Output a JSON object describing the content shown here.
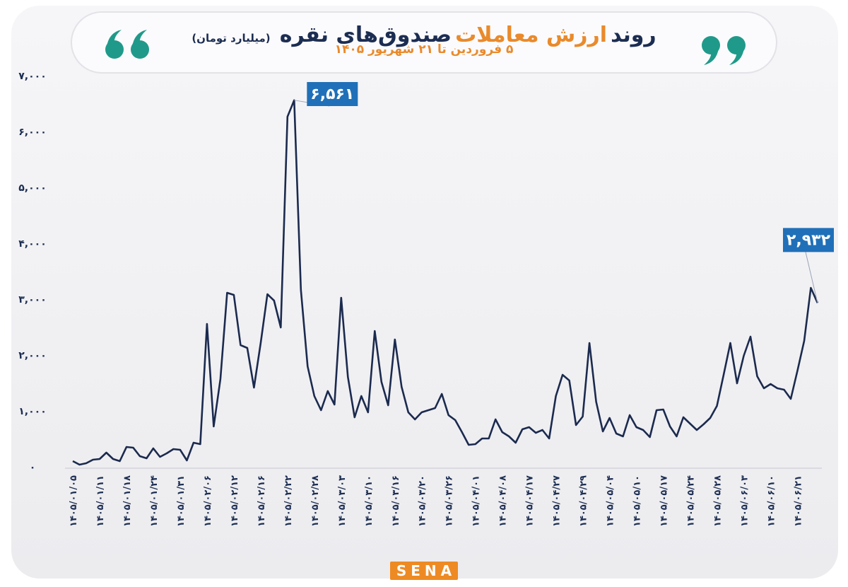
{
  "chart_data": {
    "type": "line",
    "title": [
      "روند",
      "ارزش معاملات",
      "صندوق‌های نقره"
    ],
    "unit_label": "(میلیارد تومان)",
    "subtitle": "۵ فروردین تا ۲۱ شهریور ۱۴۰۵",
    "logo": "SENA",
    "color": "#1b2a4e",
    "label_color": "#1f70b8",
    "grid": false,
    "ylim": [
      0,
      7000
    ],
    "yticks": [
      {
        "value": 0,
        "label": "۰"
      },
      {
        "value": 1000,
        "label": "۱,۰۰۰"
      },
      {
        "value": 2000,
        "label": "۲,۰۰۰"
      },
      {
        "value": 3000,
        "label": "۳,۰۰۰"
      },
      {
        "value": 4000,
        "label": "۴,۰۰۰"
      },
      {
        "value": 5000,
        "label": "۵,۰۰۰"
      },
      {
        "value": 6000,
        "label": "۶,۰۰۰"
      },
      {
        "value": 7000,
        "label": "۷,۰۰۰"
      }
    ],
    "categories": [
      "۱۴۰۵/۰۱/۰۵",
      null,
      null,
      null,
      "۱۴۰۵/۰۱/۱۱",
      null,
      null,
      null,
      "۱۴۰۵/۰۱/۱۸",
      null,
      null,
      null,
      "۱۴۰۵/۰۱/۲۴",
      null,
      null,
      null,
      "۱۴۰۵/۰۱/۳۱",
      null,
      null,
      null,
      "۱۴۰۵/۰۲/۰۶",
      null,
      null,
      null,
      "۱۴۰۵/۰۲/۱۲",
      null,
      null,
      null,
      "۱۴۰۵/۰۲/۱۶",
      null,
      null,
      null,
      "۱۴۰۵/۰۲/۲۲",
      null,
      null,
      null,
      "۱۴۰۵/۰۲/۲۸",
      null,
      null,
      null,
      "۱۴۰۵/۰۳/۰۳",
      null,
      null,
      null,
      "۱۴۰۵/۰۳/۱۰",
      null,
      null,
      null,
      "۱۴۰۵/۰۳/۱۶",
      null,
      null,
      null,
      "۱۴۰۵/۰۳/۲۰",
      null,
      null,
      null,
      "۱۴۰۵/۰۳/۲۶",
      null,
      null,
      null,
      "۱۴۰۵/۰۴/۰۱",
      null,
      null,
      null,
      "۱۴۰۵/۰۴/۰۸",
      null,
      null,
      null,
      "۱۴۰۵/۰۴/۱۷",
      null,
      null,
      null,
      "۱۴۰۵/۰۴/۲۷",
      null,
      null,
      null,
      "۱۴۰۵/۰۴/۲۹",
      null,
      null,
      null,
      "۱۴۰۵/۰۵/۰۴",
      null,
      null,
      null,
      "۱۴۰۵/۰۵/۱۰",
      null,
      null,
      null,
      "۱۴۰۵/۰۵/۱۷",
      null,
      null,
      null,
      "۱۴۰۵/۰۵/۲۴",
      null,
      null,
      null,
      "۱۴۰۵/۰۵/۲۸",
      null,
      null,
      null,
      "۱۴۰۵/۰۶/۰۳",
      null,
      null,
      null,
      "۱۴۰۵/۰۶/۱۰",
      null,
      null,
      null,
      "۱۴۰۵/۰۶/۲۱",
      null,
      null,
      null
    ],
    "values": [
      101,
      38,
      63,
      127,
      139,
      253,
      139,
      101,
      354,
      342,
      190,
      152,
      329,
      177,
      241,
      316,
      304,
      114,
      430,
      405,
      2557,
      722,
      1570,
      3114,
      3076,
      2177,
      2127,
      1418,
      2215,
      3089,
      2975,
      2494,
      6266,
      6561,
      3165,
      1797,
      1266,
      1013,
      1354,
      1114,
      3025,
      1608,
      886,
      1266,
      975,
      2430,
      1519,
      1101,
      2278,
      1430,
      975,
      848,
      975,
      1013,
      1051,
      1304,
      924,
      835,
      620,
      392,
      405,
      506,
      506,
      848,
      620,
      544,
      430,
      671,
      709,
      608,
      658,
      506,
      1266,
      1646,
      1544,
      747,
      899,
      2215,
      1165,
      633,
      873,
      595,
      544,
      924,
      709,
      658,
      532,
      1013,
      1025,
      722,
      544,
      886,
      772,
      658,
      759,
      873,
      1089,
      1646,
      2215,
      1494,
      1987,
      2329,
      1620,
      1405,
      1481,
      1405,
      1380,
      1215,
      1722,
      2253,
      3203,
      2932
    ],
    "value_labels": [
      null,
      null,
      null,
      null,
      null,
      null,
      null,
      null,
      null,
      null,
      null,
      null,
      null,
      null,
      null,
      null,
      null,
      null,
      null,
      null,
      null,
      null,
      null,
      null,
      null,
      null,
      null,
      null,
      null,
      null,
      null,
      null,
      null,
      "۶,۵۶۱",
      null,
      null,
      null,
      null,
      null,
      null,
      null,
      null,
      null,
      null,
      null,
      null,
      null,
      null,
      null,
      null,
      null,
      null,
      null,
      null,
      null,
      null,
      null,
      null,
      null,
      null,
      null,
      null,
      null,
      null,
      null,
      null,
      null,
      null,
      null,
      null,
      null,
      null,
      null,
      null,
      null,
      null,
      null,
      null,
      null,
      null,
      null,
      null,
      null,
      null,
      null,
      null,
      null,
      null,
      null,
      null,
      null,
      null,
      null,
      null,
      null,
      null,
      null,
      null,
      null,
      null,
      null,
      null,
      null,
      null,
      null,
      null,
      null,
      null,
      null,
      null,
      null,
      "۲,۹۳۲"
    ]
  }
}
